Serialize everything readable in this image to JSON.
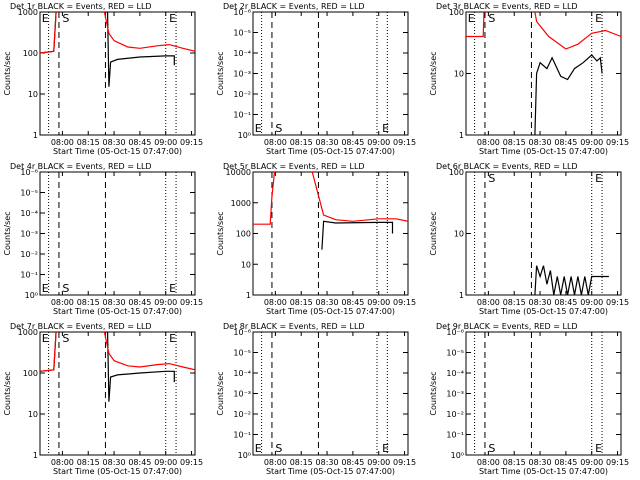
{
  "chart_data": [
    {
      "type": "line",
      "title": "Det 1r BLACK = Events, RED = LLD",
      "xlabel": "Start Time (05-Oct-15 07:47:00)",
      "ylabel": "Counts/sec",
      "xlim": [
        "07:47",
        "09:17"
      ],
      "xticks": [
        "08:00",
        "08:15",
        "08:30",
        "08:45",
        "09:00",
        "09:15"
      ],
      "log_y": true,
      "ylim": [
        1,
        1000
      ],
      "yticks": [
        1,
        10,
        100,
        1000
      ],
      "series": [
        {
          "color": "#000000",
          "x": [
            "07:47",
            "07:55",
            "07:57",
            "08:26",
            "08:27",
            "08:28",
            "08:32",
            "08:45",
            "09:00",
            "09:05",
            "09:05"
          ],
          "values": [
            100,
            110,
            3000,
            3000,
            15,
            60,
            70,
            80,
            85,
            85,
            50
          ]
        },
        {
          "color": "#ff0000",
          "x": [
            "07:47",
            "07:55",
            "07:57",
            "08:22",
            "08:27",
            "08:30",
            "08:38",
            "08:45",
            "08:55",
            "09:02",
            "09:10",
            "09:17"
          ],
          "values": [
            100,
            110,
            3000,
            3000,
            300,
            200,
            140,
            130,
            150,
            160,
            130,
            110
          ]
        }
      ],
      "markers": [
        {
          "x": "07:52",
          "style": "dotted"
        },
        {
          "x": "07:58",
          "style": "dashed"
        },
        {
          "x": "08:25",
          "style": "dashed"
        },
        {
          "x": "09:00",
          "style": "dotted"
        },
        {
          "x": "09:06",
          "style": "dotted"
        }
      ],
      "annotations": [
        {
          "text": "E",
          "x": "07:48",
          "position": "top"
        },
        {
          "text": "S",
          "x": "08:00",
          "position": "top"
        },
        {
          "text": "E",
          "x": "09:02",
          "position": "top"
        }
      ]
    },
    {
      "type": "line",
      "title": "Det 2r BLACK = Events, RED = LLD",
      "xlabel": "Start Time (05-Oct-15 07:47:00)",
      "ylabel": "Counts/sec",
      "xlim": [
        "07:47",
        "09:17"
      ],
      "xticks": [
        "08:00",
        "08:15",
        "08:30",
        "08:45",
        "09:00",
        "09:15"
      ],
      "log_y": true,
      "ylim": [
        1,
        1e-06
      ],
      "yticks": [
        {
          "value": 1,
          "label": "10⁰"
        },
        {
          "value": 0.1,
          "label": "10⁻¹"
        },
        {
          "value": 0.01,
          "label": "10⁻²"
        },
        {
          "value": 0.001,
          "label": "10⁻³"
        },
        {
          "value": 0.0001,
          "label": "10⁻⁴"
        },
        {
          "value": 1e-05,
          "label": "10⁻⁵"
        },
        {
          "value": 1e-06,
          "label": "10⁻⁶"
        }
      ],
      "series": [],
      "markers": [
        {
          "x": "07:52",
          "style": "dotted"
        },
        {
          "x": "07:58",
          "style": "dashed"
        },
        {
          "x": "08:25",
          "style": "dashed"
        },
        {
          "x": "08:59",
          "style": "dotted"
        },
        {
          "x": "09:05",
          "style": "dotted"
        }
      ],
      "annotations": [
        {
          "text": "E",
          "x": "07:48",
          "position": "bottom"
        },
        {
          "text": "S",
          "x": "08:00",
          "position": "bottom"
        },
        {
          "text": "E",
          "x": "09:02",
          "position": "bottom"
        }
      ]
    },
    {
      "type": "line",
      "title": "Det 3r BLACK = Events, RED = LLD",
      "xlabel": "Start Time (05-Oct-15 07:47:00)",
      "ylabel": "Counts/sec",
      "xlim": [
        "07:47",
        "09:17"
      ],
      "xticks": [
        "08:00",
        "08:15",
        "08:30",
        "08:45",
        "09:00",
        "09:15"
      ],
      "log_y": true,
      "ylim": [
        1,
        100
      ],
      "yticks": [
        1,
        10,
        100
      ],
      "series": [
        {
          "color": "#000000",
          "x": [
            "08:27",
            "08:28",
            "08:30",
            "08:34",
            "08:37",
            "08:42",
            "08:46",
            "08:50",
            "08:55",
            "09:00",
            "09:03",
            "09:05",
            "09:06"
          ],
          "values": [
            1,
            10,
            15,
            12,
            18,
            9,
            8,
            12,
            15,
            20,
            16,
            18,
            10
          ]
        },
        {
          "color": "#ff0000",
          "x": [
            "07:47",
            "07:57",
            "07:58",
            "08:24",
            "08:28",
            "08:35",
            "08:45",
            "08:52",
            "09:00",
            "09:08",
            "09:17"
          ],
          "values": [
            40,
            40,
            300,
            300,
            70,
            40,
            25,
            30,
            45,
            50,
            40
          ]
        }
      ],
      "markers": [
        {
          "x": "07:52",
          "style": "dotted"
        },
        {
          "x": "07:58",
          "style": "dashed"
        },
        {
          "x": "08:25",
          "style": "dashed"
        },
        {
          "x": "09:00",
          "style": "dotted"
        },
        {
          "x": "09:06",
          "style": "dotted"
        }
      ],
      "annotations": [
        {
          "text": "E",
          "x": "07:48",
          "position": "top"
        },
        {
          "text": "S",
          "x": "08:00",
          "position": "top"
        },
        {
          "text": "E",
          "x": "09:02",
          "position": "top"
        }
      ]
    },
    {
      "type": "line",
      "title": "Det 4r BLACK = Events, RED = LLD",
      "xlabel": "Start Time (05-Oct-15 07:47:00)",
      "ylabel": "Counts/sec",
      "xlim": [
        "07:47",
        "09:17"
      ],
      "xticks": [
        "08:00",
        "08:15",
        "08:30",
        "08:45",
        "09:00",
        "09:15"
      ],
      "log_y": true,
      "ylim": [
        1,
        1e-06
      ],
      "yticks": [
        {
          "value": 1,
          "label": "10⁰"
        },
        {
          "value": 0.1,
          "label": "10⁻¹"
        },
        {
          "value": 0.01,
          "label": "10⁻²"
        },
        {
          "value": 0.001,
          "label": "10⁻³"
        },
        {
          "value": 0.0001,
          "label": "10⁻⁴"
        },
        {
          "value": 1e-05,
          "label": "10⁻⁵"
        },
        {
          "value": 1e-06,
          "label": "10⁻⁶"
        }
      ],
      "series": [],
      "markers": [
        {
          "x": "07:52",
          "style": "dotted"
        },
        {
          "x": "07:58",
          "style": "dashed"
        },
        {
          "x": "08:25",
          "style": "dashed"
        },
        {
          "x": "09:00",
          "style": "dotted"
        },
        {
          "x": "09:06",
          "style": "dotted"
        }
      ],
      "annotations": [
        {
          "text": "E",
          "x": "07:48",
          "position": "bottom"
        },
        {
          "text": "S",
          "x": "08:00",
          "position": "bottom"
        },
        {
          "text": "E",
          "x": "09:02",
          "position": "bottom"
        }
      ]
    },
    {
      "type": "line",
      "title": "Det 5r BLACK = Events, RED = LLD",
      "xlabel": "Start Time (05-Oct-15 07:47:00)",
      "ylabel": "Counts/sec",
      "xlim": [
        "07:47",
        "09:17"
      ],
      "xticks": [
        "08:00",
        "08:15",
        "08:30",
        "08:45",
        "09:00",
        "09:15"
      ],
      "log_y": true,
      "ylim": [
        1,
        10000
      ],
      "yticks": [
        1,
        10,
        100,
        1000,
        10000
      ],
      "series": [
        {
          "color": "#000000",
          "x": [
            "08:27",
            "08:28",
            "08:35",
            "09:00",
            "09:08",
            "09:08"
          ],
          "values": [
            30,
            250,
            220,
            230,
            230,
            100
          ]
        },
        {
          "color": "#ff0000",
          "x": [
            "07:47",
            "07:57",
            "07:58",
            "08:00",
            "08:20",
            "08:28",
            "08:35",
            "08:45",
            "09:00",
            "09:10",
            "09:17"
          ],
          "values": [
            200,
            200,
            1500,
            20000,
            20000,
            400,
            280,
            250,
            300,
            300,
            250
          ]
        }
      ],
      "markers": [
        {
          "x": "07:58",
          "style": "dashed"
        },
        {
          "x": "08:25",
          "style": "dashed"
        },
        {
          "x": "08:59",
          "style": "dotted"
        },
        {
          "x": "09:05",
          "style": "dotted"
        }
      ],
      "annotations": []
    },
    {
      "type": "line",
      "title": "Det 6r BLACK = Events, RED = LLD",
      "xlabel": "Start Time (05-Oct-15 07:47:00)",
      "ylabel": "Counts/sec",
      "xlim": [
        "07:47",
        "09:17"
      ],
      "xticks": [
        "08:00",
        "08:15",
        "08:30",
        "08:45",
        "09:00",
        "09:15"
      ],
      "log_y": true,
      "ylim": [
        1,
        100
      ],
      "yticks": [
        1,
        10,
        100
      ],
      "series": [
        {
          "color": "#000000",
          "x": [
            "08:27",
            "08:28",
            "08:30",
            "08:32",
            "08:34",
            "08:36",
            "08:38",
            "08:40",
            "08:42",
            "08:44",
            "08:46",
            "08:48",
            "08:50",
            "08:52",
            "08:54",
            "08:56",
            "08:58",
            "09:00",
            "09:03",
            "09:05",
            "09:10"
          ],
          "values": [
            1,
            3,
            2,
            3,
            1.5,
            2.5,
            1,
            2,
            1,
            2,
            1,
            2,
            1,
            2,
            1,
            2,
            1,
            2,
            2,
            2,
            2
          ]
        }
      ],
      "markers": [
        {
          "x": "07:52",
          "style": "dotted"
        },
        {
          "x": "07:58",
          "style": "dashed"
        },
        {
          "x": "08:25",
          "style": "dashed"
        },
        {
          "x": "09:00",
          "style": "dotted"
        },
        {
          "x": "09:06",
          "style": "dotted"
        }
      ],
      "annotations": [
        {
          "text": "S",
          "x": "08:00",
          "position": "top"
        },
        {
          "text": "E",
          "x": "09:02",
          "position": "top"
        }
      ]
    },
    {
      "type": "line",
      "title": "Det 7r BLACK = Events, RED = LLD",
      "xlabel": "Start Time (05-Oct-15 07:47:00)",
      "ylabel": "Counts/sec",
      "xlim": [
        "07:47",
        "09:17"
      ],
      "xticks": [
        "08:00",
        "08:15",
        "08:30",
        "08:45",
        "09:00",
        "09:15"
      ],
      "log_y": true,
      "ylim": [
        1,
        1000
      ],
      "yticks": [
        1,
        10,
        100,
        1000
      ],
      "series": [
        {
          "color": "#000000",
          "x": [
            "07:47",
            "07:55",
            "07:57",
            "08:26",
            "08:27",
            "08:28",
            "08:32",
            "08:45",
            "09:00",
            "09:05",
            "09:05"
          ],
          "values": [
            110,
            120,
            3000,
            3000,
            20,
            80,
            90,
            100,
            110,
            110,
            60
          ]
        },
        {
          "color": "#ff0000",
          "x": [
            "07:47",
            "07:55",
            "07:57",
            "08:22",
            "08:27",
            "08:30",
            "08:38",
            "08:45",
            "08:55",
            "09:02",
            "09:10",
            "09:17"
          ],
          "values": [
            110,
            120,
            3000,
            3000,
            300,
            200,
            150,
            140,
            160,
            170,
            140,
            120
          ]
        }
      ],
      "markers": [
        {
          "x": "07:52",
          "style": "dotted"
        },
        {
          "x": "07:58",
          "style": "dashed"
        },
        {
          "x": "08:25",
          "style": "dashed"
        },
        {
          "x": "09:00",
          "style": "dotted"
        },
        {
          "x": "09:06",
          "style": "dotted"
        }
      ],
      "annotations": [
        {
          "text": "E",
          "x": "07:48",
          "position": "top"
        },
        {
          "text": "S",
          "x": "08:00",
          "position": "top"
        },
        {
          "text": "E",
          "x": "09:02",
          "position": "top"
        }
      ]
    },
    {
      "type": "line",
      "title": "Det 8r BLACK = Events, RED = LLD",
      "xlabel": "Start Time (05-Oct-15 07:47:00)",
      "ylabel": "Counts/sec",
      "xlim": [
        "07:47",
        "09:17"
      ],
      "xticks": [
        "08:00",
        "08:15",
        "08:30",
        "08:45",
        "09:00",
        "09:15"
      ],
      "log_y": true,
      "ylim": [
        1,
        1e-06
      ],
      "yticks": [
        {
          "value": 1,
          "label": "10⁰"
        },
        {
          "value": 0.1,
          "label": "10⁻¹"
        },
        {
          "value": 0.01,
          "label": "10⁻²"
        },
        {
          "value": 0.001,
          "label": "10⁻³"
        },
        {
          "value": 0.0001,
          "label": "10⁻⁴"
        },
        {
          "value": 1e-05,
          "label": "10⁻⁵"
        },
        {
          "value": 1e-06,
          "label": "10⁻⁶"
        }
      ],
      "series": [],
      "markers": [
        {
          "x": "07:52",
          "style": "dotted"
        },
        {
          "x": "07:58",
          "style": "dashed"
        },
        {
          "x": "08:25",
          "style": "dashed"
        },
        {
          "x": "08:59",
          "style": "dotted"
        },
        {
          "x": "09:05",
          "style": "dotted"
        }
      ],
      "annotations": [
        {
          "text": "E",
          "x": "07:48",
          "position": "bottom"
        },
        {
          "text": "S",
          "x": "08:00",
          "position": "bottom"
        },
        {
          "text": "E",
          "x": "09:02",
          "position": "bottom"
        }
      ]
    },
    {
      "type": "line",
      "title": "Det 9r BLACK = Events, RED = LLD",
      "xlabel": "Start Time (05-Oct-15 07:47:00)",
      "ylabel": "Counts/sec",
      "xlim": [
        "07:47",
        "09:17"
      ],
      "xticks": [
        "08:00",
        "08:15",
        "08:30",
        "08:45",
        "09:00",
        "09:15"
      ],
      "log_y": true,
      "ylim": [
        1,
        1e-06
      ],
      "yticks": [
        {
          "value": 1,
          "label": "10⁰"
        },
        {
          "value": 0.1,
          "label": "10⁻¹"
        },
        {
          "value": 0.01,
          "label": "10⁻²"
        },
        {
          "value": 0.001,
          "label": "10⁻³"
        },
        {
          "value": 0.0001,
          "label": "10⁻⁴"
        },
        {
          "value": 1e-05,
          "label": "10⁻⁵"
        },
        {
          "value": 1e-06,
          "label": "10⁻⁶"
        }
      ],
      "series": [],
      "markers": [
        {
          "x": "07:52",
          "style": "dotted"
        },
        {
          "x": "07:58",
          "style": "dashed"
        },
        {
          "x": "08:25",
          "style": "dashed"
        },
        {
          "x": "09:00",
          "style": "dotted"
        },
        {
          "x": "09:06",
          "style": "dotted"
        }
      ],
      "annotations": [
        {
          "text": "S",
          "x": "08:00",
          "position": "bottom"
        },
        {
          "text": "E",
          "x": "09:02",
          "position": "bottom"
        }
      ]
    }
  ]
}
